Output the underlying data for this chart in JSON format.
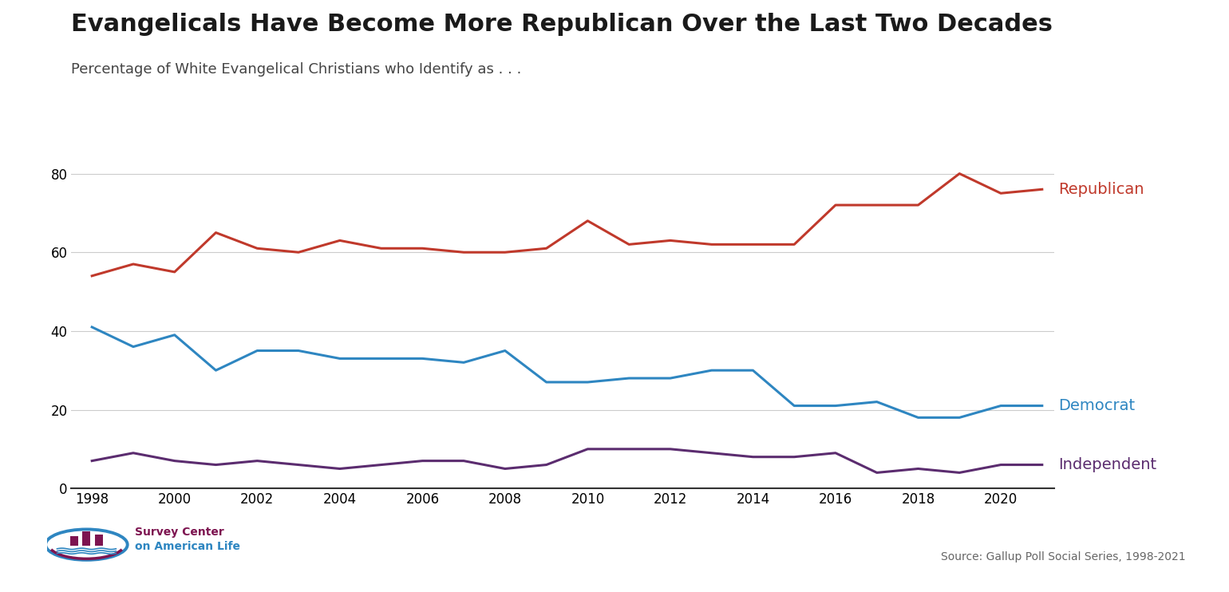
{
  "title": "Evangelicals Have Become More Republican Over the Last Two Decades",
  "subtitle": "Percentage of White Evangelical Christians who Identify as . . .",
  "source": "Source: Gallup Poll Social Series, 1998-2021",
  "years": [
    1998,
    1999,
    2000,
    2001,
    2002,
    2003,
    2004,
    2005,
    2006,
    2007,
    2008,
    2009,
    2010,
    2011,
    2012,
    2013,
    2014,
    2015,
    2016,
    2017,
    2018,
    2019,
    2020,
    2021
  ],
  "republican": [
    54,
    57,
    55,
    65,
    61,
    60,
    63,
    61,
    61,
    60,
    60,
    61,
    68,
    62,
    63,
    62,
    62,
    62,
    72,
    72,
    72,
    80,
    75,
    76
  ],
  "democrat": [
    41,
    36,
    39,
    30,
    35,
    35,
    33,
    33,
    33,
    32,
    35,
    27,
    27,
    28,
    28,
    30,
    30,
    21,
    21,
    22,
    18,
    18,
    21,
    21
  ],
  "independent": [
    7,
    9,
    7,
    6,
    7,
    6,
    5,
    6,
    7,
    7,
    5,
    6,
    10,
    10,
    10,
    9,
    8,
    8,
    9,
    4,
    5,
    4,
    6,
    6
  ],
  "republican_color": "#c0392b",
  "democrat_color": "#2e86c1",
  "independent_color": "#5b2c6f",
  "background_color": "#ffffff",
  "ylim": [
    0,
    85
  ],
  "yticks": [
    0,
    20,
    40,
    60,
    80
  ],
  "title_fontsize": 22,
  "subtitle_fontsize": 13,
  "axis_fontsize": 12,
  "label_fontsize": 14,
  "line_width": 2.2,
  "logo_circle_color": "#2e86c1",
  "logo_bar_color": "#7d1450",
  "logo_text_color1": "#7d1450",
  "logo_text_color2": "#2e86c1"
}
